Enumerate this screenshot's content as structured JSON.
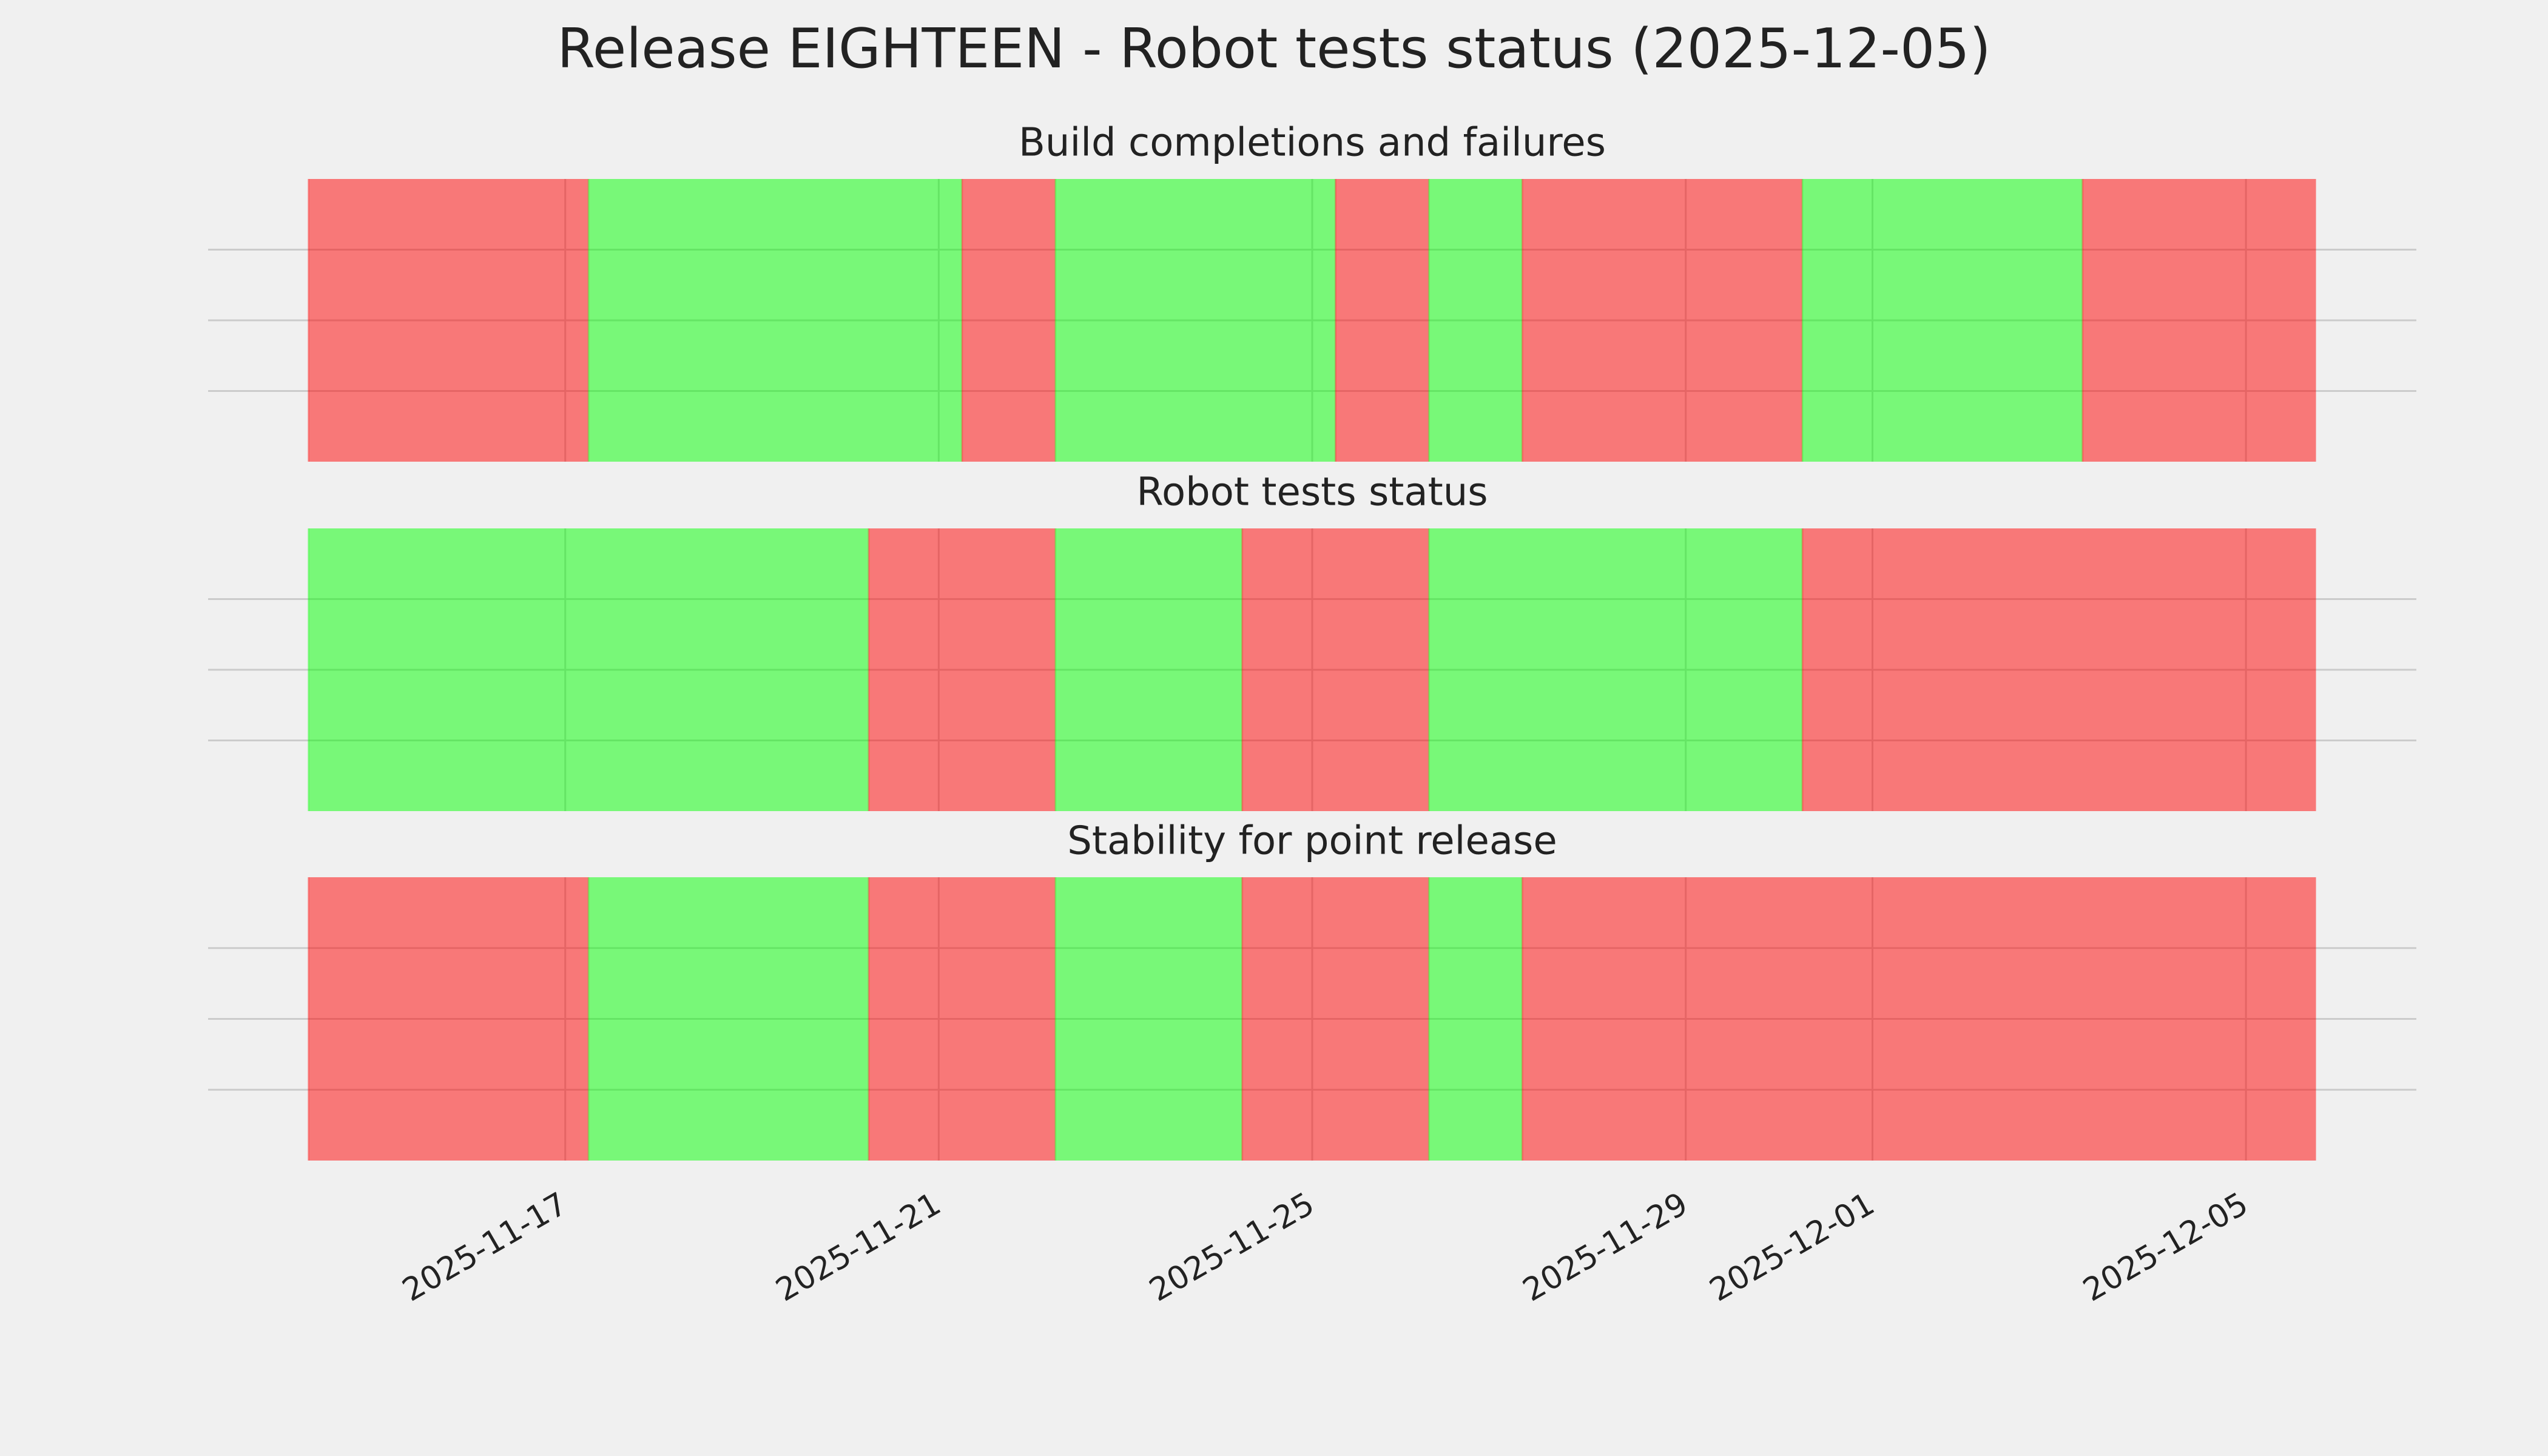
{
  "title": "Release EIGHTEEN - Robot tests status (2025-12-05)",
  "chart_data": [
    {
      "type": "timeline",
      "title": "Build completions and failures",
      "segments": [
        {
          "start": "2025-11-14T06:00",
          "end": "2025-11-17T06:00",
          "color": "#ff0000"
        },
        {
          "start": "2025-11-17T06:00",
          "end": "2025-11-21T06:00",
          "color": "#00ff00"
        },
        {
          "start": "2025-11-21T06:00",
          "end": "2025-11-22T06:00",
          "color": "#ff0000"
        },
        {
          "start": "2025-11-22T06:00",
          "end": "2025-11-25T06:00",
          "color": "#00ff00"
        },
        {
          "start": "2025-11-25T06:00",
          "end": "2025-11-26T06:00",
          "color": "#ff0000"
        },
        {
          "start": "2025-11-26T06:00",
          "end": "2025-11-27T06:00",
          "color": "#00ff00"
        },
        {
          "start": "2025-11-27T06:00",
          "end": "2025-11-30T06:00",
          "color": "#ff0000"
        },
        {
          "start": "2025-11-30T06:00",
          "end": "2025-12-03T06:00",
          "color": "#00ff00"
        },
        {
          "start": "2025-12-03T06:00",
          "end": "2025-12-05T18:00",
          "color": "#ff0000"
        }
      ],
      "alpha": 0.5,
      "xlim": [
        "2025-11-13T04:12",
        "2025-12-06T19:48"
      ],
      "xticks": [
        "2025-11-17",
        "2025-11-21",
        "2025-11-25",
        "2025-11-29",
        "2025-12-01",
        "2025-12-05"
      ],
      "show_xtick_labels": false,
      "ylim": [
        0,
        1
      ],
      "yticks": [
        0.25,
        0.5,
        0.75
      ],
      "grid": true
    },
    {
      "type": "timeline",
      "title": "Robot tests status",
      "segments": [
        {
          "start": "2025-11-14T06:00",
          "end": "2025-11-20T06:00",
          "color": "#00ff00"
        },
        {
          "start": "2025-11-20T06:00",
          "end": "2025-11-22T06:00",
          "color": "#ff0000"
        },
        {
          "start": "2025-11-22T06:00",
          "end": "2025-11-24T06:00",
          "color": "#00ff00"
        },
        {
          "start": "2025-11-24T06:00",
          "end": "2025-11-26T06:00",
          "color": "#ff0000"
        },
        {
          "start": "2025-11-26T06:00",
          "end": "2025-11-30T06:00",
          "color": "#00ff00"
        },
        {
          "start": "2025-11-30T06:00",
          "end": "2025-12-05T18:00",
          "color": "#ff0000"
        }
      ],
      "alpha": 0.5,
      "xlim": [
        "2025-11-13T04:12",
        "2025-12-06T19:48"
      ],
      "xticks": [
        "2025-11-17",
        "2025-11-21",
        "2025-11-25",
        "2025-11-29",
        "2025-12-01",
        "2025-12-05"
      ],
      "show_xtick_labels": false,
      "ylim": [
        0,
        1
      ],
      "yticks": [
        0.25,
        0.5,
        0.75
      ],
      "grid": true
    },
    {
      "type": "timeline",
      "title": "Stability for point release",
      "segments": [
        {
          "start": "2025-11-14T06:00",
          "end": "2025-11-17T06:00",
          "color": "#ff0000"
        },
        {
          "start": "2025-11-17T06:00",
          "end": "2025-11-20T06:00",
          "color": "#00ff00"
        },
        {
          "start": "2025-11-20T06:00",
          "end": "2025-11-22T06:00",
          "color": "#ff0000"
        },
        {
          "start": "2025-11-22T06:00",
          "end": "2025-11-24T06:00",
          "color": "#00ff00"
        },
        {
          "start": "2025-11-24T06:00",
          "end": "2025-11-26T06:00",
          "color": "#ff0000"
        },
        {
          "start": "2025-11-26T06:00",
          "end": "2025-11-27T06:00",
          "color": "#00ff00"
        },
        {
          "start": "2025-11-27T06:00",
          "end": "2025-12-05T18:00",
          "color": "#ff0000"
        }
      ],
      "alpha": 0.5,
      "xlim": [
        "2025-11-13T04:12",
        "2025-12-06T19:48"
      ],
      "xticks": [
        "2025-11-17",
        "2025-11-21",
        "2025-11-25",
        "2025-11-29",
        "2025-12-01",
        "2025-12-05"
      ],
      "show_xtick_labels": true,
      "ylim": [
        0,
        1
      ],
      "yticks": [
        0.25,
        0.5,
        0.75
      ],
      "grid": true
    }
  ]
}
